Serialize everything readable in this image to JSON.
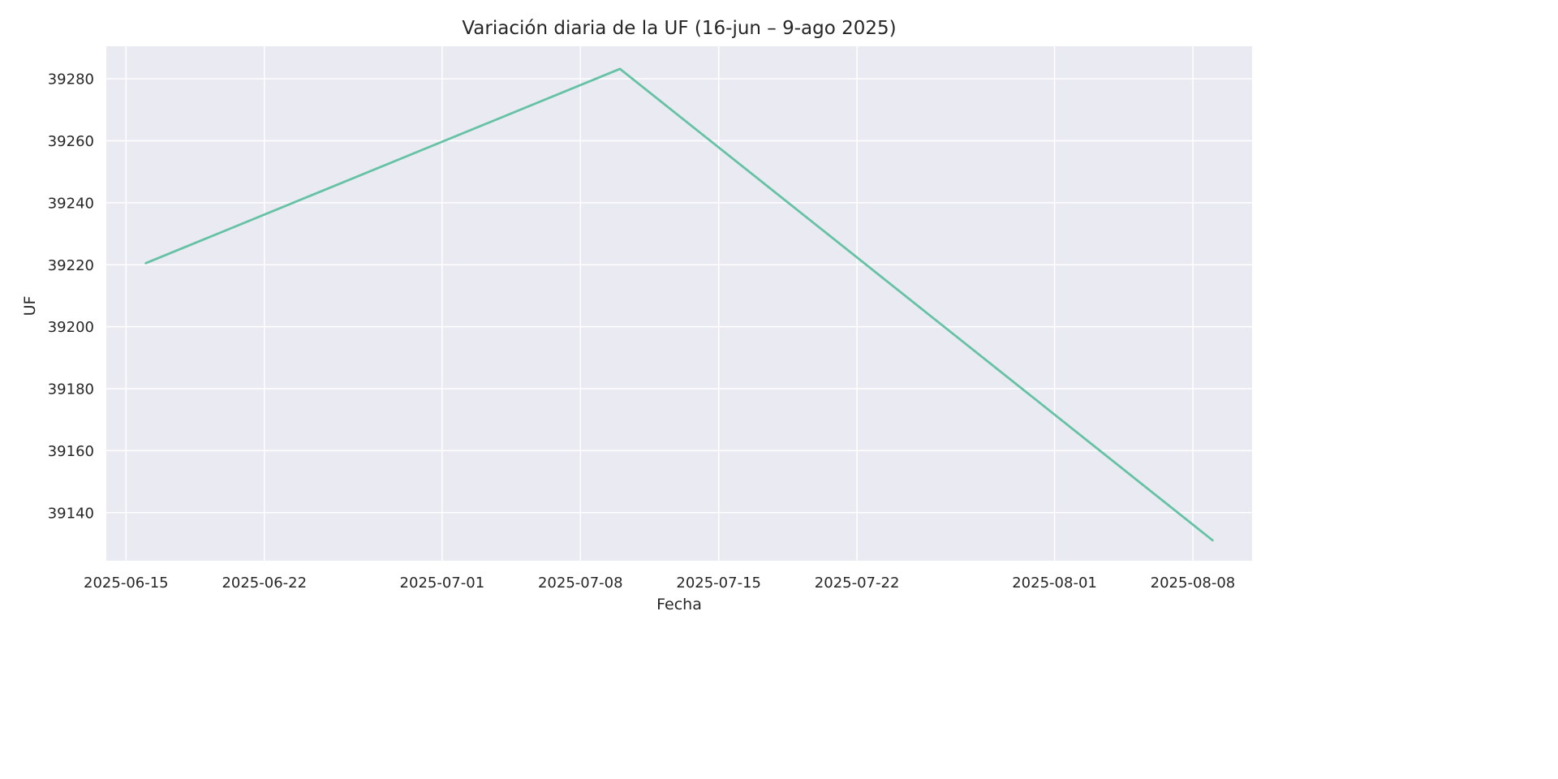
{
  "chart_data": {
    "type": "line",
    "title": "Variación diaria de la UF (16-jun – 9-ago 2025)",
    "xlabel": "Fecha",
    "ylabel": "UF",
    "x_type": "date",
    "xlim": [
      "2025-06-14",
      "2025-08-11"
    ],
    "ylim": [
      39124.5,
      39290.5
    ],
    "x_ticks": [
      "2025-06-15",
      "2025-06-22",
      "2025-07-01",
      "2025-07-08",
      "2025-07-15",
      "2025-07-22",
      "2025-08-01",
      "2025-08-08"
    ],
    "y_ticks": [
      39140,
      39160,
      39180,
      39200,
      39220,
      39240,
      39260,
      39280
    ],
    "grid": true,
    "background_color": "#eaeaf2",
    "grid_color": "#ffffff",
    "series": [
      {
        "color": "#66c2a5",
        "x": [
          "2025-06-16",
          "2025-07-10",
          "2025-08-09"
        ],
        "y": [
          39220.5,
          39283.2,
          39131.1
        ]
      }
    ]
  }
}
